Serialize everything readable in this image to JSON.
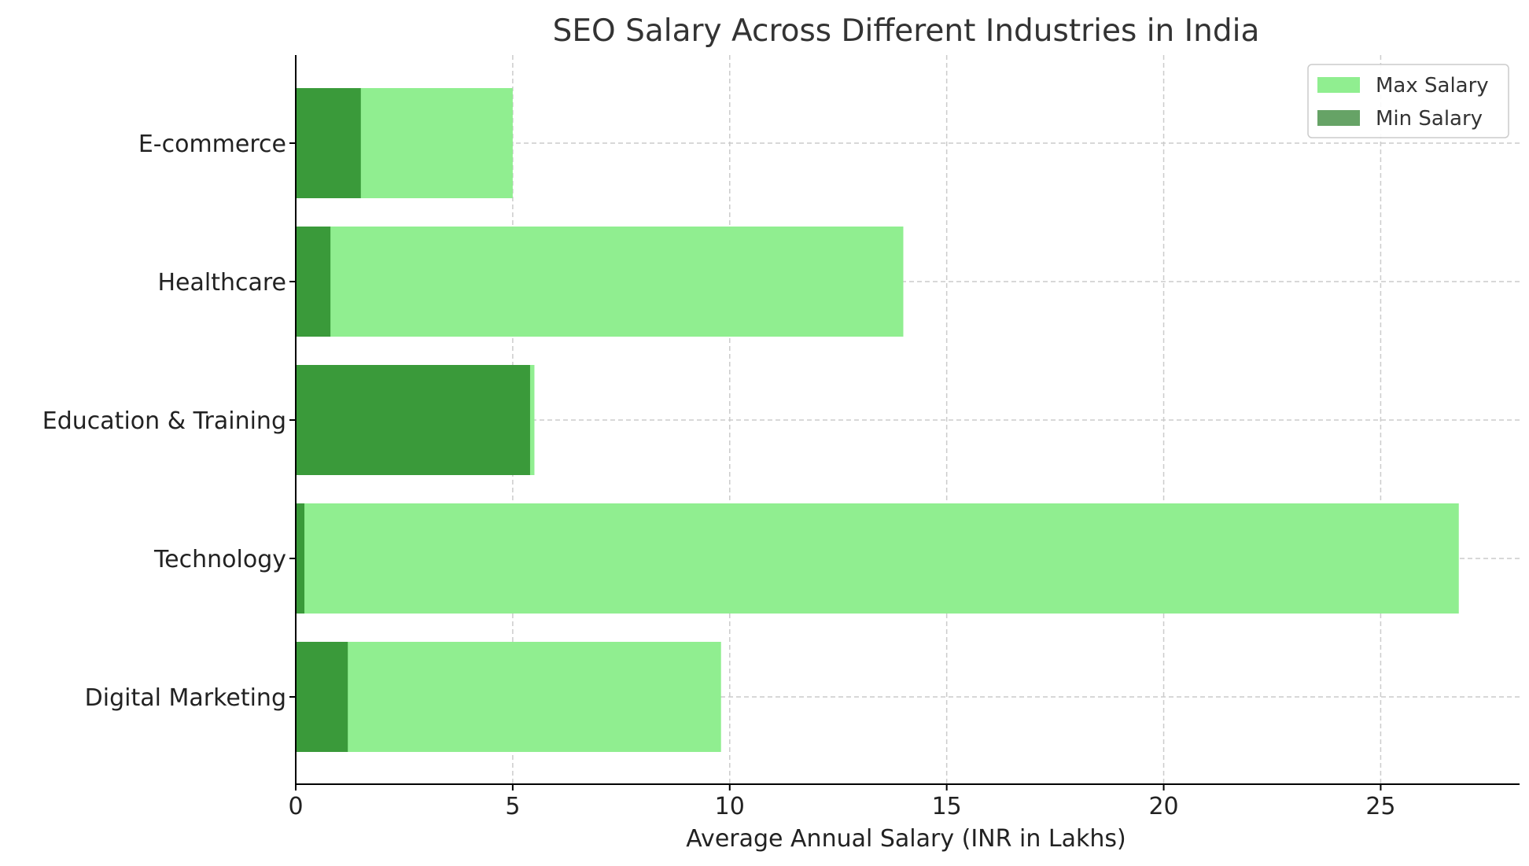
{
  "chart_data": {
    "type": "bar",
    "orientation": "horizontal",
    "title": "SEO Salary Across Different Industries in India",
    "xlabel": "Average Annual Salary (INR in Lakhs)",
    "ylabel": "",
    "categories": [
      "Digital Marketing",
      "Technology",
      "Education & Training",
      "Healthcare",
      "E-commerce"
    ],
    "series": [
      {
        "name": "Max Salary",
        "values": [
          9.8,
          26.8,
          5.5,
          14.0,
          5.0
        ],
        "color": "#90ee90"
      },
      {
        "name": "Min Salary",
        "values": [
          1.2,
          0.2,
          5.4,
          0.8,
          1.5
        ],
        "color": "#3a9a3a",
        "legend_color": "#66a366"
      }
    ],
    "xlim": [
      0,
      28.2
    ],
    "xticks": [
      0,
      5,
      10,
      15,
      20,
      25
    ],
    "grid": true,
    "legend_position": "top-right"
  }
}
